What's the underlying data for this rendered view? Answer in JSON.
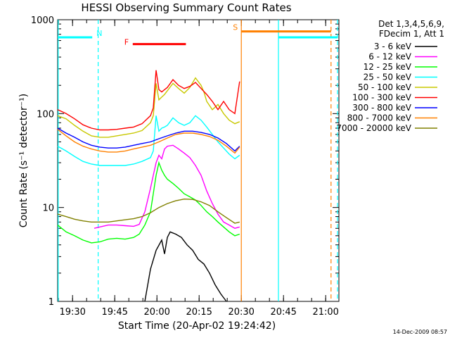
{
  "chart_data": {
    "type": "line",
    "title": "HESSI Observing Summary Count Rates",
    "xlabel": "Start Time (20-Apr-02 19:24:42)",
    "ylabel": "Count Rate (s⁻¹ detector⁻¹)",
    "yscale": "log",
    "ylim": [
      1,
      1000
    ],
    "xlim_minutes": [
      0,
      100
    ],
    "y_ticks": [
      "1",
      "10",
      "100",
      "1000"
    ],
    "x_ticks": [
      {
        "label": "19:30",
        "t": 5.3
      },
      {
        "label": "19:45",
        "t": 20.3
      },
      {
        "label": "20:00",
        "t": 35.3
      },
      {
        "label": "20:15",
        "t": 50.3
      },
      {
        "label": "20:30",
        "t": 65.3
      },
      {
        "label": "20:45",
        "t": 80.3
      },
      {
        "label": "21:00",
        "t": 95.3
      }
    ],
    "legend_header": [
      "Det 1,3,4,5,6,9,",
      "FDecim 1, Att 1"
    ],
    "legend_placement": "right, outside plot",
    "series": [
      {
        "name": "3 - 6 keV",
        "color": "#000000",
        "x": [
          31,
          33,
          35,
          37,
          38,
          39,
          40,
          42,
          44,
          46,
          48,
          50,
          52,
          54,
          56,
          58,
          60
        ],
        "y": [
          1,
          2.2,
          3.5,
          4.5,
          3.2,
          4.8,
          5.5,
          5.2,
          4.8,
          4.0,
          3.5,
          2.8,
          2.5,
          2.0,
          1.5,
          1.2,
          1
        ]
      },
      {
        "name": "6 - 12 keV",
        "color": "#ff00ff",
        "x": [
          13,
          15,
          18,
          21,
          24,
          27,
          29,
          31,
          32,
          33,
          34,
          35,
          36,
          37,
          38,
          39,
          41,
          43,
          45,
          47,
          49,
          51,
          53,
          55,
          57,
          59,
          61,
          63,
          64.7
        ],
        "y": [
          6.0,
          6.2,
          6.5,
          6.5,
          6.4,
          6.3,
          6.6,
          9,
          12,
          16,
          22,
          30,
          36,
          33,
          42,
          45,
          46,
          42,
          38,
          34,
          28,
          22,
          15,
          11,
          8.5,
          7,
          6.5,
          6,
          6.2
        ]
      },
      {
        "name": "12 - 25 keV",
        "color": "#00ff00",
        "x": [
          0,
          3,
          6,
          9,
          12,
          15,
          18,
          21,
          24,
          27,
          29,
          31,
          33,
          34,
          35,
          36,
          37,
          38,
          39,
          41,
          43,
          45,
          47,
          49,
          51,
          53,
          55,
          57,
          59,
          61,
          63,
          64.7
        ],
        "y": [
          6.5,
          5.5,
          5.0,
          4.5,
          4.2,
          4.3,
          4.6,
          4.7,
          4.6,
          4.8,
          5.2,
          6.5,
          9,
          14,
          22,
          30,
          25,
          22,
          20,
          18,
          16,
          14,
          13,
          12,
          10.5,
          9,
          8,
          7,
          6.2,
          5.5,
          5.0,
          5.2
        ]
      },
      {
        "name": "25 - 50 keV",
        "color": "#00ffff",
        "x": [
          0,
          3,
          6,
          9,
          12,
          15,
          18,
          21,
          24,
          27,
          30,
          33,
          34,
          35,
          36,
          37,
          38,
          39,
          41,
          43,
          45,
          47,
          49,
          51,
          53,
          55,
          57,
          59,
          61,
          63,
          64.7
        ],
        "y": [
          45,
          40,
          35,
          31,
          29,
          28,
          28,
          28,
          28,
          29,
          31,
          34,
          40,
          95,
          65,
          70,
          72,
          75,
          90,
          80,
          75,
          80,
          95,
          85,
          72,
          60,
          50,
          43,
          37,
          33,
          36
        ]
      },
      {
        "name": "50 - 100 keV",
        "color": "#c8c800",
        "x": [
          0,
          3,
          6,
          9,
          12,
          15,
          18,
          21,
          24,
          27,
          30,
          33,
          34,
          35,
          36,
          37,
          38,
          39,
          41,
          43,
          45,
          47,
          49,
          51,
          52,
          53,
          55,
          57,
          59,
          61,
          63,
          64.7
        ],
        "y": [
          95,
          88,
          75,
          65,
          58,
          56,
          56,
          58,
          60,
          62,
          66,
          80,
          95,
          210,
          140,
          150,
          160,
          175,
          210,
          185,
          165,
          190,
          240,
          200,
          170,
          135,
          110,
          125,
          100,
          85,
          78,
          82
        ]
      },
      {
        "name": "100 - 300 keV",
        "color": "#ff0000",
        "x": [
          0,
          3,
          6,
          9,
          12,
          15,
          18,
          21,
          24,
          27,
          30,
          33,
          34,
          35,
          36,
          37,
          38,
          39,
          41,
          43,
          45,
          47,
          49,
          51,
          53,
          55,
          57,
          59,
          61,
          63,
          64.7
        ],
        "y": [
          110,
          100,
          88,
          76,
          70,
          67,
          67,
          68,
          70,
          72,
          78,
          95,
          115,
          290,
          180,
          170,
          180,
          190,
          230,
          200,
          185,
          195,
          215,
          185,
          160,
          135,
          110,
          135,
          110,
          100,
          220
        ]
      },
      {
        "name": "300 - 800 keV",
        "color": "#0000ff",
        "x": [
          0,
          3,
          6,
          9,
          12,
          15,
          18,
          21,
          24,
          27,
          30,
          33,
          36,
          39,
          42,
          45,
          48,
          51,
          54,
          57,
          60,
          63,
          64.7
        ],
        "y": [
          70,
          62,
          56,
          50,
          46,
          44,
          43,
          43,
          44,
          46,
          48,
          50,
          54,
          58,
          62,
          65,
          65,
          63,
          60,
          55,
          48,
          40,
          45
        ]
      },
      {
        "name": "800 - 7000 keV",
        "color": "#ff8000",
        "x": [
          0,
          3,
          6,
          9,
          12,
          15,
          18,
          21,
          24,
          27,
          30,
          33,
          36,
          39,
          42,
          45,
          48,
          51,
          54,
          57,
          60,
          63,
          64.7
        ],
        "y": [
          68,
          58,
          50,
          45,
          42,
          40,
          39,
          39,
          40,
          42,
          44,
          46,
          50,
          55,
          60,
          62,
          62,
          60,
          57,
          52,
          45,
          38,
          44
        ]
      },
      {
        "name": "7000 - 20000 keV",
        "color": "#808000",
        "x": [
          0,
          3,
          6,
          9,
          12,
          15,
          18,
          21,
          24,
          27,
          30,
          33,
          36,
          39,
          42,
          45,
          48,
          51,
          54,
          57,
          60,
          63,
          64.7
        ],
        "y": [
          8.5,
          8,
          7.5,
          7.2,
          7.0,
          7.0,
          7.0,
          7.2,
          7.4,
          7.6,
          8.0,
          8.8,
          10,
          11,
          11.8,
          12.3,
          12.2,
          11.5,
          10.5,
          9,
          7.8,
          6.8,
          7
        ]
      }
    ],
    "flag_bars": [
      {
        "label": "N",
        "color": "#00ffff",
        "segments": [
          [
            0,
            12.3
          ],
          [
            78.5,
            99.5
          ]
        ]
      },
      {
        "label": "F",
        "color": "#ff0000",
        "segments": [
          [
            26.7,
            45.6
          ]
        ]
      },
      {
        "label": "S",
        "color": "#ff8000",
        "segments": [
          [
            65.3,
            97.2
          ]
        ]
      }
    ],
    "markers": [
      {
        "t": 0.2,
        "color": "#00ffff",
        "style": "solid"
      },
      {
        "t": 14.4,
        "color": "#00ffff",
        "style": "dashed"
      },
      {
        "t": 65.3,
        "color": "#ff8000",
        "style": "solid"
      },
      {
        "t": 78.5,
        "color": "#00ffff",
        "style": "solid"
      },
      {
        "t": 97.2,
        "color": "#ff8000",
        "style": "dashed"
      },
      {
        "t": 99.5,
        "color": "#00ffff",
        "style": "dashed"
      }
    ]
  },
  "footer_timestamp": "14-Dec-2009 08:57"
}
